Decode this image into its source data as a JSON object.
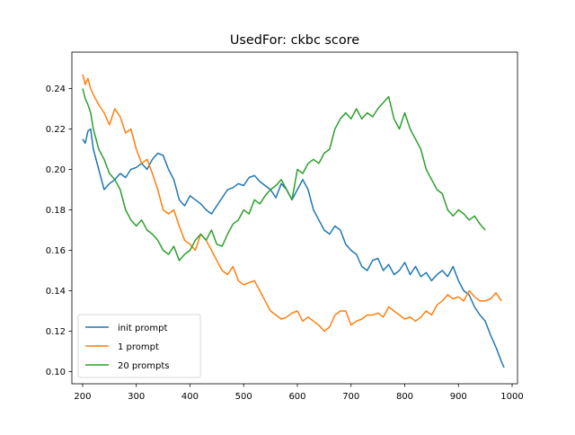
{
  "chart_data": {
    "type": "line",
    "title": "UsedFor: ckbc score",
    "xlabel": "",
    "ylabel": "",
    "xlim": [
      180,
      1010
    ],
    "ylim": [
      0.094,
      0.258
    ],
    "xticks": [
      200,
      300,
      400,
      500,
      600,
      700,
      800,
      900,
      1000
    ],
    "yticks": [
      0.1,
      0.12,
      0.14,
      0.16,
      0.18,
      0.2,
      0.22,
      0.24
    ],
    "grid": false,
    "legend_position": "lower-left",
    "series": [
      {
        "name": "init prompt",
        "color": "#1f77b4",
        "x": [
          200,
          205,
          210,
          215,
          220,
          230,
          240,
          250,
          260,
          270,
          280,
          290,
          300,
          310,
          320,
          330,
          340,
          350,
          360,
          370,
          380,
          390,
          400,
          410,
          420,
          430,
          440,
          450,
          460,
          470,
          480,
          490,
          500,
          510,
          520,
          530,
          540,
          550,
          560,
          570,
          580,
          590,
          600,
          610,
          620,
          630,
          640,
          650,
          660,
          670,
          680,
          690,
          700,
          710,
          720,
          730,
          740,
          750,
          760,
          770,
          780,
          790,
          800,
          810,
          820,
          830,
          840,
          850,
          860,
          870,
          880,
          890,
          900,
          910,
          920,
          930,
          940,
          950,
          960,
          970,
          980,
          985
        ],
        "values": [
          0.215,
          0.213,
          0.219,
          0.22,
          0.21,
          0.2,
          0.19,
          0.193,
          0.195,
          0.198,
          0.196,
          0.2,
          0.201,
          0.203,
          0.2,
          0.205,
          0.208,
          0.207,
          0.2,
          0.195,
          0.185,
          0.182,
          0.187,
          0.185,
          0.183,
          0.18,
          0.178,
          0.182,
          0.186,
          0.19,
          0.191,
          0.193,
          0.192,
          0.196,
          0.197,
          0.194,
          0.192,
          0.19,
          0.186,
          0.193,
          0.19,
          0.185,
          0.19,
          0.195,
          0.19,
          0.18,
          0.175,
          0.17,
          0.168,
          0.172,
          0.17,
          0.163,
          0.16,
          0.158,
          0.152,
          0.15,
          0.155,
          0.156,
          0.15,
          0.153,
          0.148,
          0.15,
          0.154,
          0.148,
          0.152,
          0.147,
          0.149,
          0.145,
          0.148,
          0.15,
          0.147,
          0.152,
          0.145,
          0.14,
          0.138,
          0.132,
          0.128,
          0.125,
          0.118,
          0.112,
          0.105,
          0.102
        ]
      },
      {
        "name": "1 prompt",
        "color": "#ff7f0e",
        "x": [
          200,
          205,
          210,
          215,
          220,
          230,
          240,
          250,
          260,
          270,
          280,
          290,
          300,
          310,
          320,
          330,
          340,
          350,
          360,
          370,
          380,
          390,
          400,
          410,
          420,
          430,
          440,
          450,
          460,
          470,
          480,
          490,
          500,
          510,
          520,
          530,
          540,
          550,
          560,
          570,
          580,
          590,
          600,
          610,
          620,
          630,
          640,
          650,
          660,
          670,
          680,
          690,
          700,
          710,
          720,
          730,
          740,
          750,
          760,
          770,
          780,
          790,
          800,
          810,
          820,
          830,
          840,
          850,
          860,
          870,
          880,
          890,
          900,
          910,
          920,
          930,
          940,
          950,
          960,
          970,
          980
        ],
        "values": [
          0.247,
          0.242,
          0.245,
          0.24,
          0.237,
          0.232,
          0.228,
          0.222,
          0.23,
          0.226,
          0.218,
          0.22,
          0.21,
          0.203,
          0.205,
          0.198,
          0.19,
          0.18,
          0.178,
          0.18,
          0.172,
          0.165,
          0.163,
          0.16,
          0.168,
          0.165,
          0.16,
          0.155,
          0.15,
          0.148,
          0.152,
          0.145,
          0.143,
          0.144,
          0.145,
          0.14,
          0.135,
          0.13,
          0.128,
          0.126,
          0.127,
          0.129,
          0.13,
          0.125,
          0.127,
          0.125,
          0.123,
          0.12,
          0.122,
          0.128,
          0.13,
          0.13,
          0.123,
          0.125,
          0.126,
          0.128,
          0.128,
          0.129,
          0.127,
          0.132,
          0.13,
          0.128,
          0.126,
          0.127,
          0.125,
          0.127,
          0.13,
          0.128,
          0.133,
          0.135,
          0.138,
          0.136,
          0.137,
          0.135,
          0.14,
          0.137,
          0.135,
          0.135,
          0.136,
          0.139,
          0.135
        ]
      },
      {
        "name": "20 prompts",
        "color": "#2ca02c",
        "x": [
          200,
          205,
          210,
          215,
          220,
          230,
          240,
          250,
          260,
          270,
          280,
          290,
          300,
          310,
          320,
          330,
          340,
          350,
          360,
          370,
          380,
          390,
          400,
          410,
          420,
          430,
          440,
          450,
          460,
          470,
          480,
          490,
          500,
          510,
          520,
          530,
          540,
          550,
          560,
          570,
          580,
          590,
          600,
          610,
          620,
          630,
          640,
          650,
          660,
          670,
          680,
          690,
          700,
          710,
          720,
          730,
          740,
          750,
          760,
          770,
          780,
          790,
          800,
          810,
          820,
          830,
          840,
          850,
          860,
          870,
          880,
          890,
          900,
          910,
          920,
          930,
          940,
          950
        ],
        "values": [
          0.24,
          0.235,
          0.232,
          0.228,
          0.22,
          0.21,
          0.205,
          0.198,
          0.195,
          0.19,
          0.18,
          0.175,
          0.172,
          0.175,
          0.17,
          0.168,
          0.165,
          0.16,
          0.158,
          0.162,
          0.155,
          0.158,
          0.16,
          0.165,
          0.168,
          0.165,
          0.17,
          0.163,
          0.162,
          0.168,
          0.173,
          0.175,
          0.18,
          0.178,
          0.185,
          0.183,
          0.187,
          0.19,
          0.192,
          0.195,
          0.19,
          0.185,
          0.2,
          0.198,
          0.203,
          0.205,
          0.203,
          0.208,
          0.21,
          0.22,
          0.225,
          0.228,
          0.225,
          0.23,
          0.225,
          0.228,
          0.226,
          0.23,
          0.233,
          0.236,
          0.225,
          0.22,
          0.228,
          0.22,
          0.215,
          0.21,
          0.2,
          0.195,
          0.19,
          0.188,
          0.18,
          0.177,
          0.18,
          0.178,
          0.175,
          0.177,
          0.173,
          0.17
        ]
      }
    ]
  }
}
